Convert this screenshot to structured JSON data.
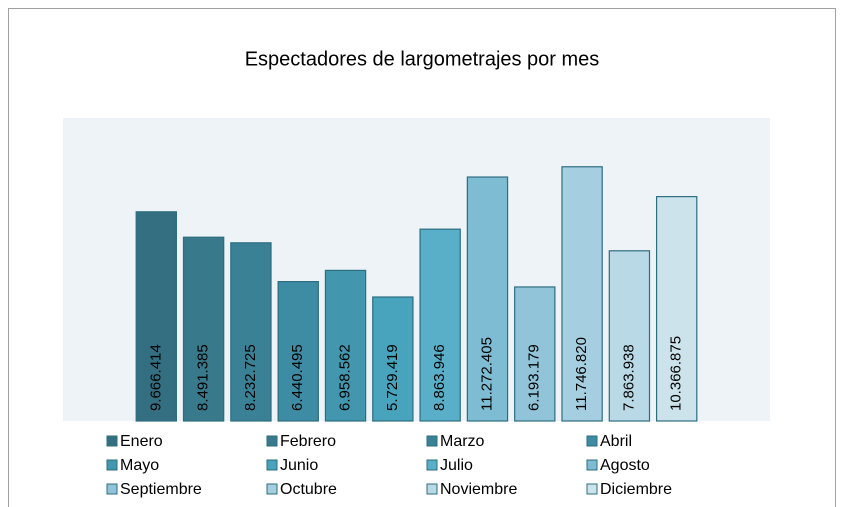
{
  "chart_data": {
    "type": "bar",
    "title": "Espectadores de largometrajes por mes",
    "categories": [
      null
    ],
    "ylim": [
      0,
      14000000
    ],
    "legend": "bottom",
    "series": [
      {
        "name": "Enero",
        "color": "#336f80",
        "values": [
          9666414
        ],
        "value_labels": [
          "9.666.414"
        ]
      },
      {
        "name": "Febrero",
        "color": "#38798c",
        "values": [
          8491385
        ],
        "value_labels": [
          "8.491.385"
        ]
      },
      {
        "name": "Marzo",
        "color": "#3a8196",
        "values": [
          8232725
        ],
        "value_labels": [
          "8.232.725"
        ]
      },
      {
        "name": "Abril",
        "color": "#3e8ca3",
        "values": [
          6440495
        ],
        "value_labels": [
          "6.440.495"
        ]
      },
      {
        "name": "Mayo",
        "color": "#4297ae",
        "values": [
          6958562
        ],
        "value_labels": [
          "6.958.562"
        ]
      },
      {
        "name": "Junio",
        "color": "#48a3bc",
        "values": [
          5729419
        ],
        "value_labels": [
          "5.729.419"
        ]
      },
      {
        "name": "Julio",
        "color": "#5aafc8",
        "values": [
          8863946
        ],
        "value_labels": [
          "8.863.946"
        ]
      },
      {
        "name": "Agosto",
        "color": "#7dbcd2",
        "values": [
          11272405
        ],
        "value_labels": [
          "11.272.405"
        ]
      },
      {
        "name": "Septiembre",
        "color": "#91c4d8",
        "values": [
          6193179
        ],
        "value_labels": [
          "6.193.179"
        ]
      },
      {
        "name": "Octubre",
        "color": "#a5cfe0",
        "values": [
          11746820
        ],
        "value_labels": [
          "11.746.820"
        ]
      },
      {
        "name": "Noviembre",
        "color": "#b9d9e6",
        "values": [
          7863938
        ],
        "value_labels": [
          "7.863.938"
        ]
      },
      {
        "name": "Diciembre",
        "color": "#cde3ec",
        "values": [
          10366875
        ],
        "value_labels": [
          "10.366.875"
        ]
      }
    ]
  }
}
